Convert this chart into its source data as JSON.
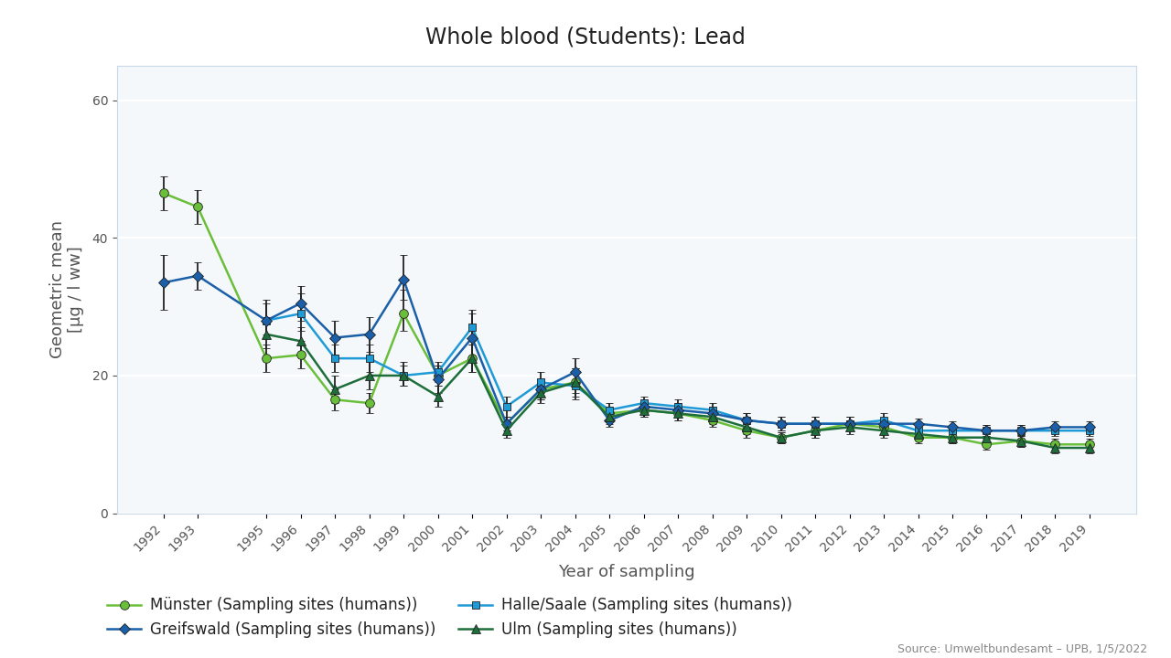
{
  "title": "Whole blood (Students): Lead",
  "xlabel": "Year of sampling",
  "ylabel": "Geometric mean\n[µg / l ww]",
  "source": "Source: Umweltbundesamt – UPB, 1/5/2022",
  "ylim": [
    0,
    65
  ],
  "yticks": [
    0,
    20,
    40,
    60
  ],
  "series": {
    "Münster (Sampling sites (humans))": {
      "color": "#6abf3a",
      "ecolor": "#222222",
      "marker": "o",
      "markersize": 7,
      "years": [
        1992,
        1993,
        1995,
        1996,
        1997,
        1998,
        1999,
        2000,
        2001,
        2002,
        2003,
        2004,
        2005,
        2006,
        2007,
        2008,
        2009,
        2010,
        2011,
        2012,
        2013,
        2014,
        2015,
        2016,
        2017,
        2018,
        2019
      ],
      "values": [
        46.5,
        44.5,
        22.5,
        23.0,
        16.5,
        16.0,
        29.0,
        20.0,
        22.5,
        13.0,
        18.0,
        19.0,
        14.5,
        15.0,
        14.5,
        13.5,
        12.0,
        11.0,
        12.0,
        13.0,
        12.5,
        11.0,
        11.0,
        10.0,
        10.5,
        10.0,
        10.0
      ],
      "yerr_lo": [
        2.5,
        2.5,
        2.0,
        2.0,
        1.5,
        1.5,
        2.5,
        1.5,
        2.0,
        1.0,
        1.5,
        1.5,
        1.0,
        1.0,
        1.0,
        1.0,
        1.0,
        0.8,
        1.0,
        1.0,
        1.0,
        0.8,
        0.8,
        0.8,
        0.8,
        0.8,
        0.8
      ],
      "yerr_hi": [
        2.5,
        2.5,
        2.0,
        2.0,
        1.5,
        1.5,
        3.5,
        1.5,
        2.0,
        1.0,
        1.5,
        2.0,
        1.0,
        1.0,
        1.0,
        1.0,
        1.0,
        0.8,
        1.0,
        1.0,
        1.0,
        0.8,
        0.8,
        0.8,
        0.8,
        0.8,
        0.8
      ]
    },
    "Halle/Saale (Sampling sites (humans))": {
      "color": "#1e9bd7",
      "ecolor": "#222222",
      "marker": "s",
      "markersize": 6,
      "years": [
        1995,
        1996,
        1997,
        1998,
        1999,
        2000,
        2001,
        2002,
        2003,
        2004,
        2005,
        2006,
        2007,
        2008,
        2009,
        2010,
        2011,
        2012,
        2013,
        2014,
        2015,
        2016,
        2017,
        2018,
        2019
      ],
      "values": [
        28.0,
        29.0,
        22.5,
        22.5,
        20.0,
        20.5,
        27.0,
        15.5,
        19.0,
        18.5,
        15.0,
        16.0,
        15.5,
        15.0,
        13.5,
        13.0,
        13.0,
        13.0,
        13.5,
        12.0,
        12.0,
        12.0,
        12.0,
        12.0,
        12.0
      ],
      "yerr_lo": [
        2.0,
        2.5,
        2.0,
        2.0,
        1.5,
        1.5,
        2.0,
        1.5,
        1.5,
        2.0,
        1.0,
        1.0,
        1.0,
        1.0,
        1.0,
        1.0,
        1.0,
        1.0,
        1.0,
        0.8,
        0.8,
        0.8,
        0.8,
        0.8,
        0.8
      ],
      "yerr_hi": [
        3.0,
        3.0,
        2.0,
        2.0,
        1.5,
        1.5,
        2.0,
        1.5,
        1.5,
        2.5,
        1.0,
        1.0,
        1.0,
        1.0,
        1.0,
        1.0,
        1.0,
        1.0,
        1.0,
        0.8,
        0.8,
        0.8,
        0.8,
        0.8,
        0.8
      ]
    },
    "Greifswald (Sampling sites (humans))": {
      "color": "#1a5fa8",
      "ecolor": "#222222",
      "marker": "D",
      "markersize": 6,
      "years": [
        1992,
        1993,
        1995,
        1996,
        1997,
        1998,
        1999,
        2000,
        2001,
        2002,
        2003,
        2004,
        2005,
        2006,
        2007,
        2008,
        2009,
        2010,
        2011,
        2012,
        2013,
        2014,
        2015,
        2016,
        2017,
        2018,
        2019
      ],
      "values": [
        33.5,
        34.5,
        28.0,
        30.5,
        25.5,
        26.0,
        34.0,
        19.5,
        25.5,
        13.0,
        18.0,
        20.5,
        13.5,
        15.5,
        15.0,
        14.5,
        13.5,
        13.0,
        13.0,
        13.0,
        13.0,
        13.0,
        12.5,
        12.0,
        12.0,
        12.5,
        12.5
      ],
      "yerr_lo": [
        4.0,
        2.0,
        2.5,
        2.5,
        2.5,
        2.5,
        3.0,
        2.0,
        3.0,
        1.0,
        1.5,
        1.5,
        1.0,
        1.0,
        1.0,
        1.0,
        1.0,
        1.0,
        1.0,
        1.0,
        0.8,
        0.8,
        0.8,
        0.8,
        0.8,
        0.8,
        0.8
      ],
      "yerr_hi": [
        4.0,
        2.0,
        2.5,
        2.5,
        2.5,
        2.5,
        3.5,
        2.0,
        4.0,
        1.0,
        1.5,
        2.0,
        1.0,
        1.0,
        1.0,
        1.0,
        1.0,
        1.0,
        1.0,
        1.0,
        0.8,
        0.8,
        0.8,
        0.8,
        0.8,
        0.8,
        0.8
      ]
    },
    "Ulm (Sampling sites (humans))": {
      "color": "#1e6e3b",
      "ecolor": "#222222",
      "marker": "^",
      "markersize": 7,
      "years": [
        1995,
        1996,
        1997,
        1998,
        1999,
        2000,
        2001,
        2002,
        2003,
        2004,
        2005,
        2006,
        2007,
        2008,
        2009,
        2010,
        2011,
        2012,
        2013,
        2014,
        2015,
        2016,
        2017,
        2018,
        2019
      ],
      "values": [
        26.0,
        25.0,
        18.0,
        20.0,
        20.0,
        17.0,
        22.5,
        12.0,
        17.5,
        19.0,
        14.0,
        15.0,
        14.5,
        14.0,
        12.5,
        11.0,
        12.0,
        12.5,
        12.0,
        11.5,
        11.0,
        11.0,
        10.5,
        9.5,
        9.5
      ],
      "yerr_lo": [
        2.0,
        2.0,
        2.0,
        2.0,
        1.5,
        1.5,
        2.0,
        1.0,
        1.5,
        2.0,
        1.0,
        1.0,
        1.0,
        1.0,
        1.0,
        0.8,
        1.0,
        1.0,
        1.0,
        0.8,
        0.8,
        0.8,
        0.8,
        0.8,
        0.8
      ],
      "yerr_hi": [
        2.5,
        2.0,
        2.0,
        2.0,
        2.0,
        1.5,
        2.0,
        1.0,
        1.5,
        2.0,
        1.0,
        1.0,
        1.0,
        1.0,
        1.0,
        0.8,
        1.0,
        1.0,
        1.0,
        0.8,
        0.8,
        0.8,
        0.8,
        0.8,
        0.8
      ]
    }
  },
  "legend_order": [
    "Münster (Sampling sites (humans))",
    "Greifswald (Sampling sites (humans))",
    "Halle/Saale (Sampling sites (humans))",
    "Ulm (Sampling sites (humans))"
  ],
  "xtick_years": [
    1992,
    1993,
    1995,
    1996,
    1997,
    1998,
    1999,
    2000,
    2001,
    2002,
    2003,
    2004,
    2005,
    2006,
    2007,
    2008,
    2009,
    2010,
    2011,
    2012,
    2013,
    2014,
    2015,
    2016,
    2017,
    2018,
    2019
  ],
  "bg_color": "#ffffff",
  "plot_bg_color": "#f5f8fb",
  "grid_color": "#ffffff",
  "title_fontsize": 17,
  "axis_label_fontsize": 13,
  "tick_fontsize": 10,
  "legend_fontsize": 12,
  "source_fontsize": 9
}
